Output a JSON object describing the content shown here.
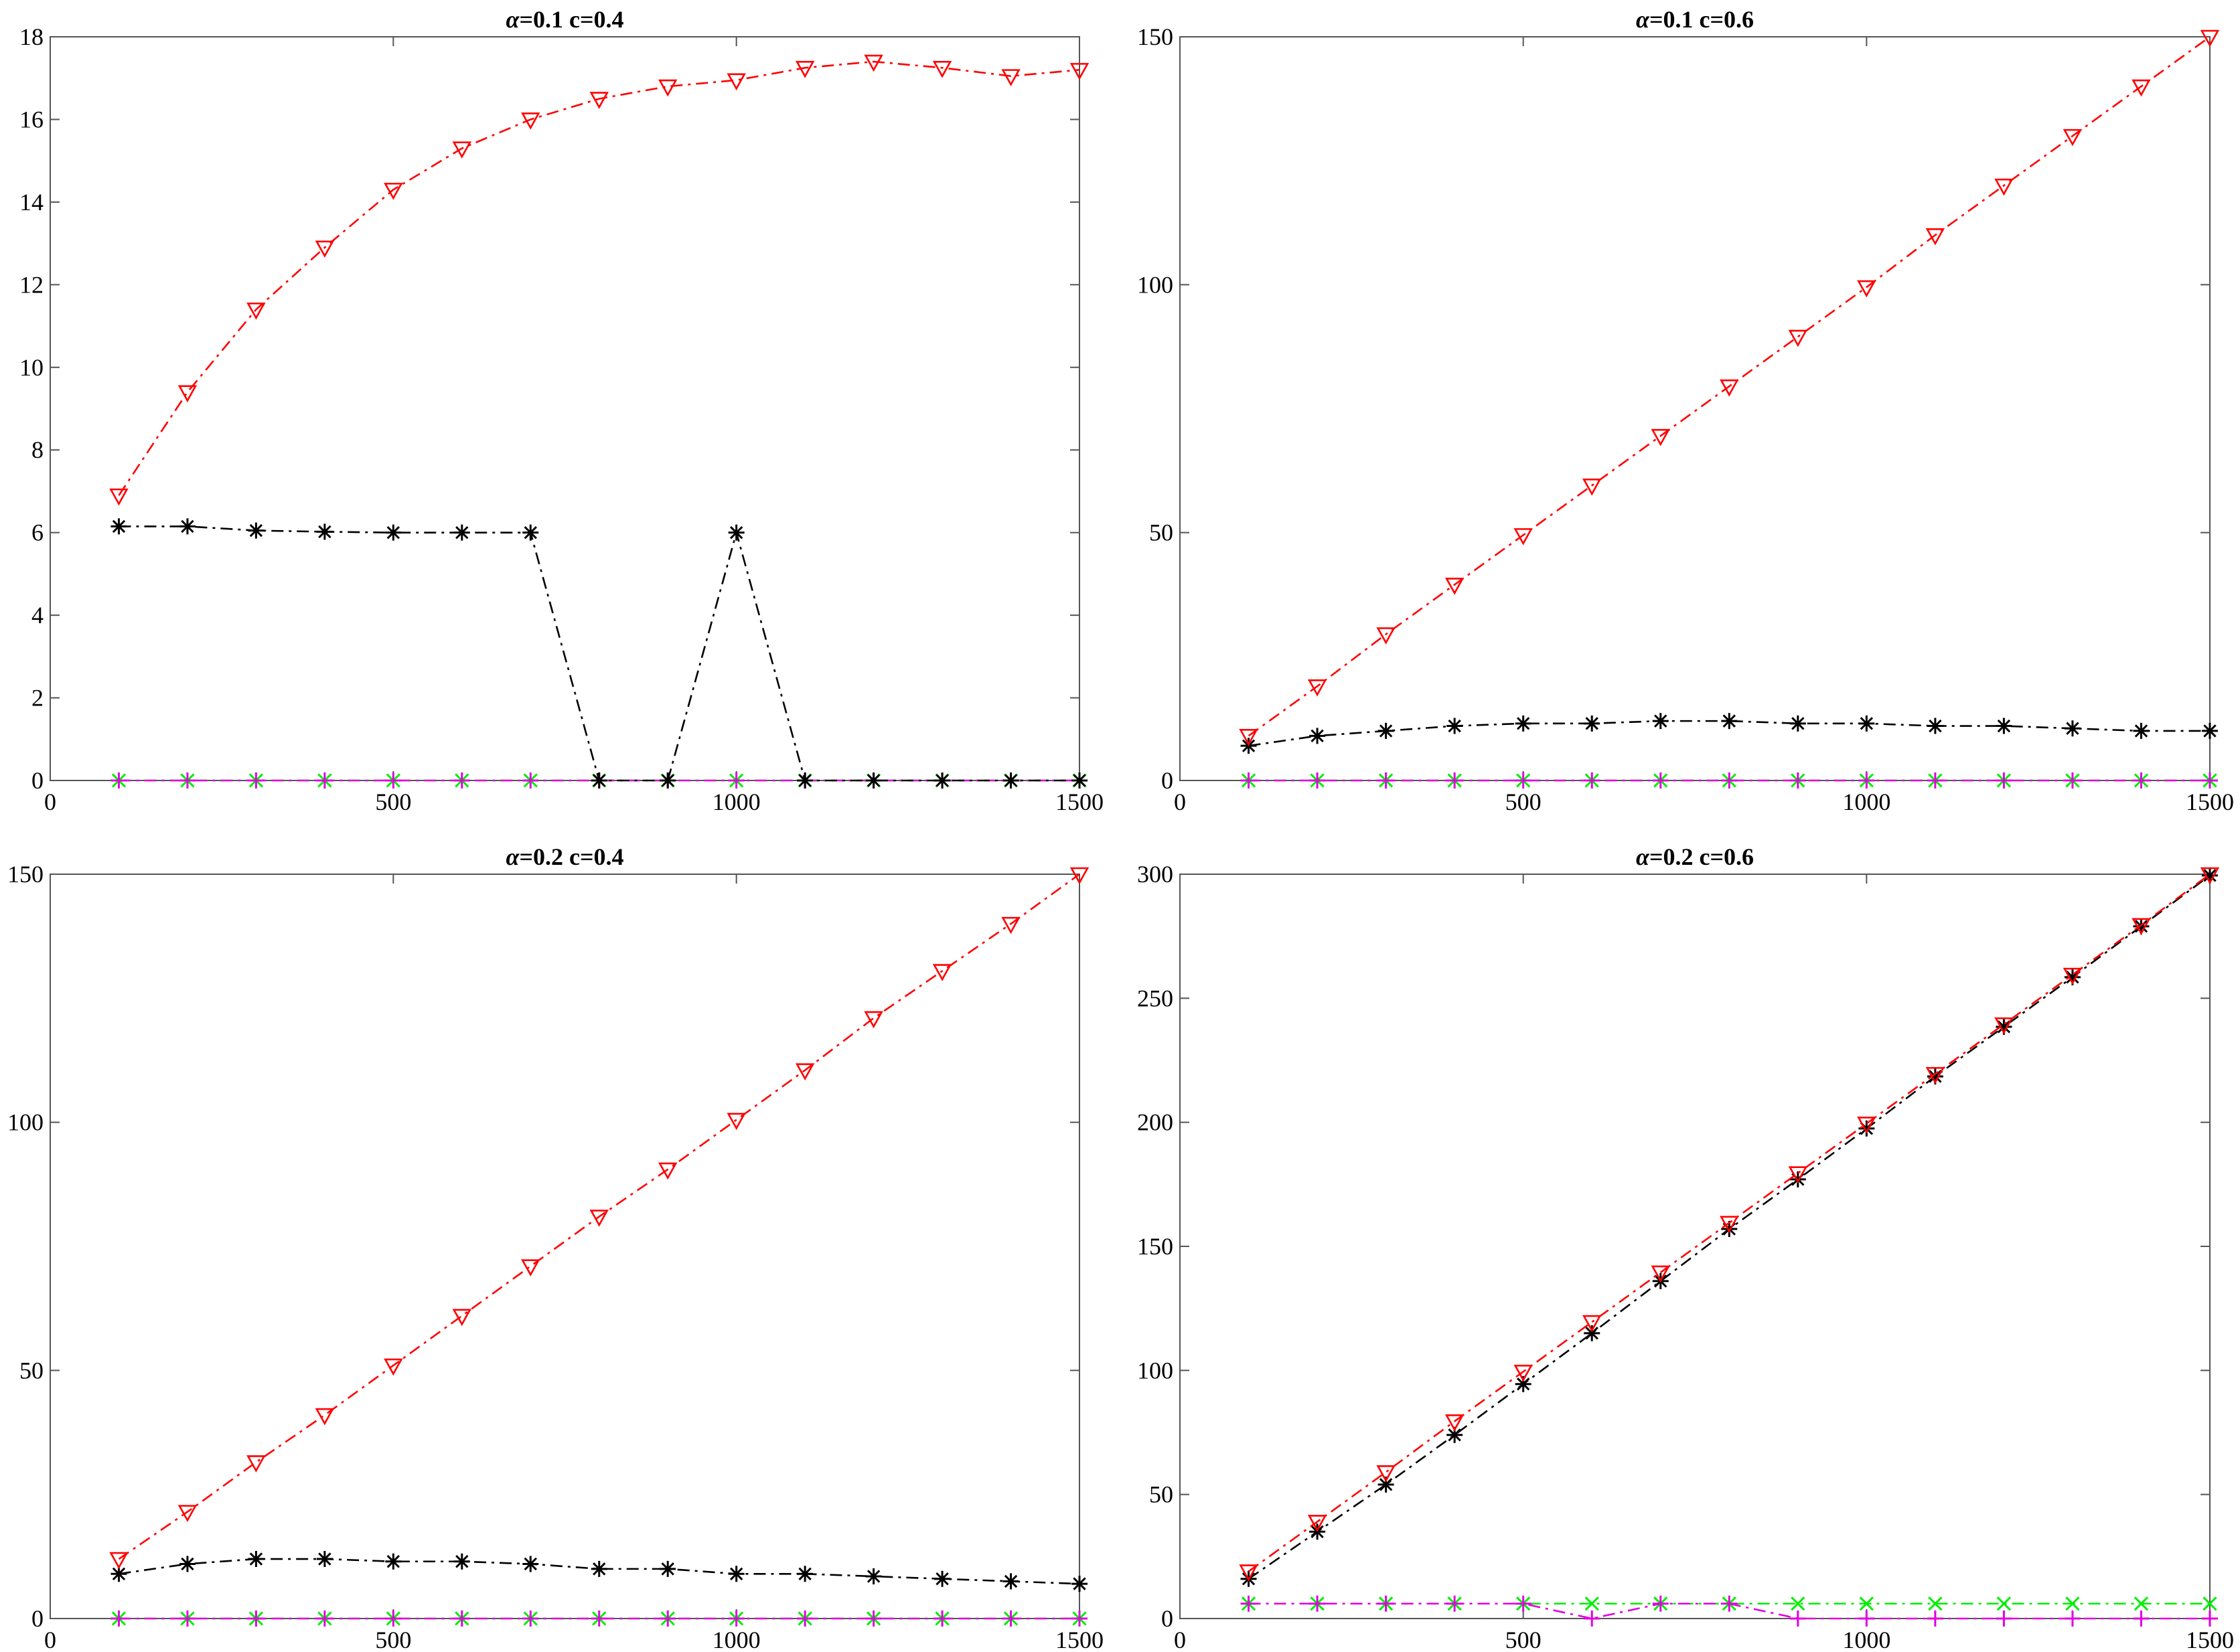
{
  "colors": {
    "series_red": "#ff0000",
    "series_black": "#000000",
    "series_green": "#00ee00",
    "series_magenta": "#e000e0",
    "axes": "#555555"
  },
  "chart_data": [
    {
      "type": "line",
      "title_symbol": "α",
      "title": "=0.1 c=0.4",
      "xlim": [
        0,
        1500
      ],
      "ylim": [
        0,
        18
      ],
      "xticks": [
        "0",
        "500",
        "1000",
        "1500"
      ],
      "yticks": [
        "0",
        "2",
        "4",
        "6",
        "8",
        "10",
        "12",
        "14",
        "16",
        "18"
      ],
      "x": [
        100,
        200,
        300,
        400,
        500,
        600,
        700,
        800,
        900,
        1000,
        1100,
        1200,
        1300,
        1400,
        1500
      ],
      "grid": false,
      "series": [
        {
          "color": "#ff0000",
          "marker": "triangle-down",
          "values": [
            6.9,
            9.4,
            11.4,
            12.9,
            14.3,
            15.3,
            16.0,
            16.5,
            16.8,
            16.95,
            17.25,
            17.4,
            17.25,
            17.05,
            17.2
          ]
        },
        {
          "color": "#000000",
          "marker": "asterisk",
          "values": [
            6.15,
            6.15,
            6.05,
            6.02,
            6.0,
            6.0,
            6.0,
            0,
            0,
            6.0,
            0,
            0,
            0,
            0,
            0
          ]
        },
        {
          "color": "#00ee00",
          "marker": "x",
          "values": [
            0,
            0,
            0,
            0,
            0,
            0,
            0,
            0,
            0,
            0,
            0,
            0,
            0,
            0,
            0
          ]
        },
        {
          "color": "#e000e0",
          "marker": "plus",
          "values": [
            0,
            0,
            0,
            0,
            0,
            0,
            0,
            0,
            0,
            0,
            0,
            0,
            0,
            0,
            0
          ]
        }
      ]
    },
    {
      "type": "line",
      "title_symbol": "α",
      "title": "=0.1 c=0.6",
      "xlim": [
        0,
        1500
      ],
      "ylim": [
        0,
        150
      ],
      "xticks": [
        "0",
        "500",
        "1000",
        "1500"
      ],
      "yticks": [
        "0",
        "50",
        "100",
        "150"
      ],
      "x": [
        100,
        200,
        300,
        400,
        500,
        600,
        700,
        800,
        900,
        1000,
        1100,
        1200,
        1300,
        1400,
        1500
      ],
      "grid": false,
      "series": [
        {
          "color": "#ff0000",
          "marker": "triangle-down",
          "values": [
            9,
            19,
            29.5,
            39.5,
            49.5,
            59.5,
            69.5,
            79.5,
            89.5,
            99.5,
            110,
            120,
            130,
            140,
            150
          ]
        },
        {
          "color": "#000000",
          "marker": "asterisk",
          "values": [
            7,
            9,
            10,
            11,
            11.5,
            11.5,
            12,
            12,
            11.5,
            11.5,
            11,
            11,
            10.5,
            10,
            10
          ]
        },
        {
          "color": "#00ee00",
          "marker": "x",
          "values": [
            0,
            0,
            0,
            0,
            0,
            0,
            0,
            0,
            0,
            0,
            0,
            0,
            0,
            0,
            0
          ]
        },
        {
          "color": "#e000e0",
          "marker": "plus",
          "values": [
            0,
            0,
            0,
            0,
            0,
            0,
            0,
            0,
            0,
            0,
            0,
            0,
            0,
            0,
            0
          ]
        }
      ]
    },
    {
      "type": "line",
      "title_symbol": "α",
      "title": "=0.2 c=0.4",
      "xlim": [
        0,
        1500
      ],
      "ylim": [
        0,
        150
      ],
      "xticks": [
        "0",
        "500",
        "1000",
        "1500"
      ],
      "yticks": [
        "0",
        "50",
        "100",
        "150"
      ],
      "x": [
        100,
        200,
        300,
        400,
        500,
        600,
        700,
        800,
        900,
        1000,
        1100,
        1200,
        1300,
        1400,
        1500
      ],
      "grid": false,
      "series": [
        {
          "color": "#ff0000",
          "marker": "triangle-down",
          "values": [
            12,
            21.5,
            31.5,
            41,
            51,
            61,
            71,
            81,
            90.5,
            100.5,
            110.5,
            121,
            130.5,
            140,
            150
          ]
        },
        {
          "color": "#000000",
          "marker": "asterisk",
          "values": [
            9,
            11,
            12,
            12,
            11.5,
            11.5,
            11,
            10,
            10,
            9,
            9,
            8.5,
            8,
            7.5,
            7
          ]
        },
        {
          "color": "#00ee00",
          "marker": "x",
          "values": [
            0,
            0,
            0,
            0,
            0,
            0,
            0,
            0,
            0,
            0,
            0,
            0,
            0,
            0,
            0
          ]
        },
        {
          "color": "#e000e0",
          "marker": "plus",
          "values": [
            0,
            0,
            0,
            0,
            0,
            0,
            0,
            0,
            0,
            0,
            0,
            0,
            0,
            0,
            0
          ]
        }
      ]
    },
    {
      "type": "line",
      "title_symbol": "α",
      "title": "=0.2 c=0.6",
      "xlim": [
        0,
        1500
      ],
      "ylim": [
        0,
        300
      ],
      "xticks": [
        "0",
        "500",
        "1000",
        "1500"
      ],
      "yticks": [
        "0",
        "50",
        "100",
        "150",
        "200",
        "250",
        "300"
      ],
      "x": [
        100,
        200,
        300,
        400,
        500,
        600,
        700,
        800,
        900,
        1000,
        1100,
        1200,
        1300,
        1400,
        1500
      ],
      "grid": false,
      "series": [
        {
          "color": "#ff0000",
          "marker": "triangle-down",
          "values": [
            19,
            39,
            59,
            79.5,
            99.5,
            119.5,
            139.5,
            159.5,
            179.5,
            199.5,
            219.5,
            239.5,
            259.5,
            279.5,
            300
          ]
        },
        {
          "color": "#000000",
          "marker": "asterisk",
          "values": [
            16,
            35,
            54,
            74,
            94.5,
            115,
            136,
            157,
            177,
            197.5,
            218.5,
            238.5,
            258.5,
            279,
            299.5
          ]
        },
        {
          "color": "#00ee00",
          "marker": "x",
          "values": [
            6,
            6,
            6,
            6,
            6,
            6,
            6,
            6,
            6,
            6,
            6,
            6,
            6,
            6,
            6
          ]
        },
        {
          "color": "#e000e0",
          "marker": "plus",
          "values": [
            6,
            6,
            6,
            6,
            6,
            0,
            6,
            6,
            0,
            0,
            0,
            0,
            0,
            0,
            0
          ]
        }
      ]
    }
  ]
}
